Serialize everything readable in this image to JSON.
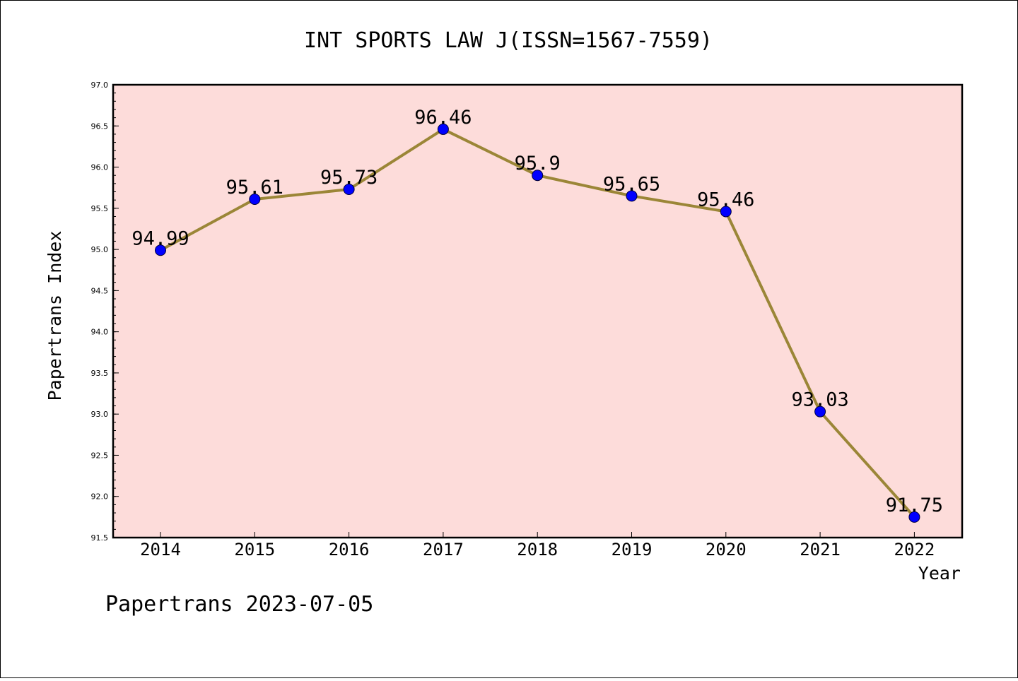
{
  "chart_data": {
    "type": "line",
    "title": "INT SPORTS LAW J(ISSN=1567-7559)",
    "xlabel": "Year",
    "ylabel": "Papertrans Index",
    "categories": [
      "2014",
      "2015",
      "2016",
      "2017",
      "2018",
      "2019",
      "2020",
      "2021",
      "2022"
    ],
    "values": [
      94.99,
      95.61,
      95.73,
      96.46,
      95.9,
      95.65,
      95.46,
      93.03,
      91.75
    ],
    "data_labels": [
      "94.99",
      "95.61",
      "95.73",
      "96.46",
      "95.9",
      "95.65",
      "95.46",
      "93.03",
      "91.75"
    ],
    "ylim": [
      91.5,
      97.0
    ],
    "yticks": [
      "91.5",
      "92.0",
      "92.5",
      "93.0",
      "93.5",
      "94.0",
      "94.5",
      "95.0",
      "95.5",
      "96.0",
      "96.5",
      "97.0"
    ],
    "grid": false,
    "colors": {
      "plot_background": "#fddcda",
      "line": "#9b8637",
      "marker": "#0000ff"
    }
  },
  "footer": "Papertrans 2023-07-05"
}
